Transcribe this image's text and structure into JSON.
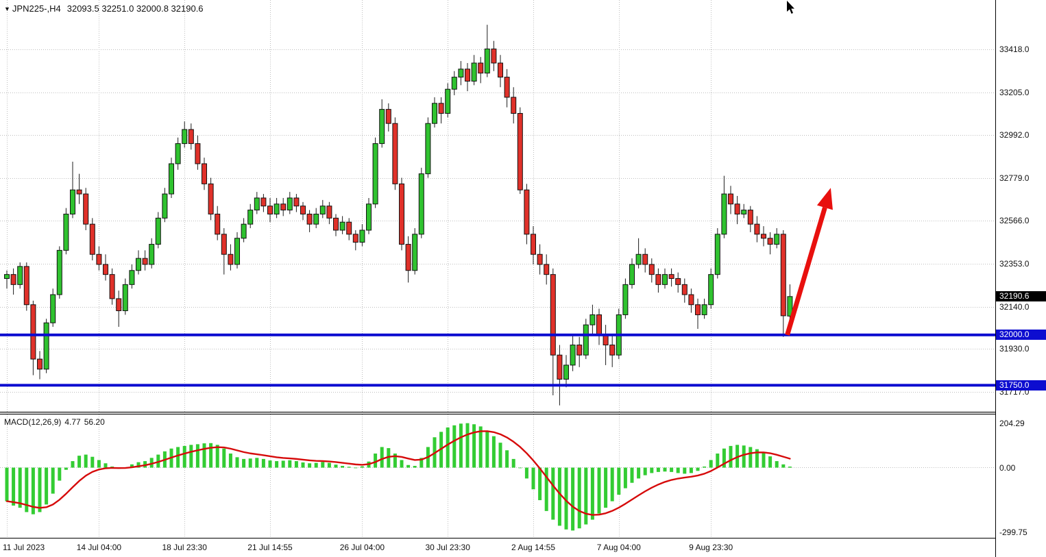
{
  "header": {
    "dropdown_icon": "▼",
    "symbol_timeframe": "JPN225-,H4",
    "ohlc_values": "32093.5 32251.0 32000.8 32190.6"
  },
  "price_axis": {
    "current_price_tag": {
      "text": "32190.6",
      "value": 32190.6,
      "bg": "#000000",
      "fg": "#ffffff"
    },
    "level_tags": [
      {
        "text": "32000.0",
        "value": 32000.0,
        "bg": "#0d0dd0",
        "fg": "#ffffff"
      },
      {
        "text": "31750.0",
        "value": 31750.0,
        "bg": "#0d0dd0",
        "fg": "#ffffff"
      }
    ]
  },
  "macd_panel": {
    "name": "MACD(12,26,9)",
    "value_main": "4.77",
    "value_signal": "56.20"
  },
  "annotations": {
    "support_levels": [
      {
        "price": 32000.0,
        "color": "#0d0dd0",
        "thickness": 4
      },
      {
        "price": 31750.0,
        "color": "#0d0dd0",
        "thickness": 4
      }
    ],
    "trend_arrow": {
      "from_bar": 118.6,
      "from_price": 32000,
      "to_bar": 125.2,
      "to_price": 32730,
      "color": "#e8100e",
      "width": 7
    }
  },
  "chart_data": [
    {
      "type": "candlestick",
      "title": "JPN225-,H4",
      "symbol": "JPN225-",
      "timeframe": "H4",
      "last_ohlc": {
        "open": 32093.5,
        "high": 32251.0,
        "low": 32000.8,
        "close": 32190.6
      },
      "ylim": [
        31620,
        33663
      ],
      "y_ticks": [
        "33418.0",
        "33205.0",
        "32992.0",
        "32779.0",
        "32566.0",
        "32353.0",
        "32140.0",
        "31930.0",
        "31717.0"
      ],
      "x_ticks": [
        {
          "label": "11 Jul 2023",
          "bar": 0
        },
        {
          "label": "14 Jul 04:00",
          "bar": 14
        },
        {
          "label": "18 Jul 23:30",
          "bar": 27
        },
        {
          "label": "21 Jul 14:55",
          "bar": 40
        },
        {
          "label": "26 Jul 04:00",
          "bar": 54
        },
        {
          "label": "30 Jul 23:30",
          "bar": 67
        },
        {
          "label": "2 Aug 14:55",
          "bar": 80
        },
        {
          "label": "7 Aug 04:00",
          "bar": 93
        },
        {
          "label": "9 Aug 23:30",
          "bar": 107
        }
      ],
      "up_color": "#2fc22f",
      "down_color": "#e0312a",
      "candles": [
        [
          32280,
          32320,
          32230,
          32300
        ],
        [
          32300,
          32330,
          32200,
          32250
        ],
        [
          32250,
          32360,
          32230,
          32340
        ],
        [
          32340,
          32360,
          32120,
          32150
        ],
        [
          32150,
          32170,
          31800,
          31880
        ],
        [
          31880,
          31920,
          31780,
          31830
        ],
        [
          31830,
          32080,
          31810,
          32060
        ],
        [
          32060,
          32230,
          32040,
          32200
        ],
        [
          32200,
          32440,
          32180,
          32420
        ],
        [
          32420,
          32630,
          32400,
          32600
        ],
        [
          32600,
          32860,
          32580,
          32720
        ],
        [
          32720,
          32800,
          32650,
          32700
        ],
        [
          32700,
          32730,
          32520,
          32550
        ],
        [
          32550,
          32580,
          32370,
          32400
        ],
        [
          32400,
          32440,
          32320,
          32350
        ],
        [
          32350,
          32400,
          32270,
          32300
        ],
        [
          32300,
          32330,
          32150,
          32180
        ],
        [
          32180,
          32220,
          32040,
          32120
        ],
        [
          32120,
          32280,
          32100,
          32250
        ],
        [
          32250,
          32350,
          32230,
          32320
        ],
        [
          32320,
          32420,
          32300,
          32380
        ],
        [
          32380,
          32420,
          32320,
          32350
        ],
        [
          32350,
          32480,
          32330,
          32450
        ],
        [
          32450,
          32610,
          32430,
          32580
        ],
        [
          32580,
          32730,
          32560,
          32700
        ],
        [
          32700,
          32880,
          32680,
          32850
        ],
        [
          32850,
          32980,
          32820,
          32950
        ],
        [
          32950,
          33060,
          32930,
          33020
        ],
        [
          33020,
          33050,
          32920,
          32950
        ],
        [
          32950,
          32990,
          32820,
          32850
        ],
        [
          32850,
          32880,
          32720,
          32750
        ],
        [
          32750,
          32780,
          32570,
          32600
        ],
        [
          32600,
          32640,
          32470,
          32500
        ],
        [
          32500,
          32530,
          32300,
          32400
        ],
        [
          32400,
          32450,
          32320,
          32350
        ],
        [
          32350,
          32510,
          32330,
          32480
        ],
        [
          32480,
          32580,
          32460,
          32550
        ],
        [
          32550,
          32650,
          32530,
          32620
        ],
        [
          32620,
          32710,
          32600,
          32680
        ],
        [
          32680,
          32700,
          32610,
          32640
        ],
        [
          32640,
          32680,
          32560,
          32600
        ],
        [
          32600,
          32680,
          32580,
          32650
        ],
        [
          32650,
          32680,
          32590,
          32620
        ],
        [
          32620,
          32710,
          32600,
          32680
        ],
        [
          32680,
          32700,
          32610,
          32640
        ],
        [
          32640,
          32660,
          32570,
          32600
        ],
        [
          32600,
          32620,
          32510,
          32550
        ],
        [
          32550,
          32630,
          32530,
          32600
        ],
        [
          32600,
          32670,
          32580,
          32640
        ],
        [
          32640,
          32660,
          32550,
          32580
        ],
        [
          32580,
          32600,
          32490,
          32520
        ],
        [
          32520,
          32590,
          32500,
          32560
        ],
        [
          32560,
          32580,
          32470,
          32500
        ],
        [
          32500,
          32520,
          32420,
          32460
        ],
        [
          32460,
          32550,
          32440,
          32520
        ],
        [
          32520,
          32680,
          32500,
          32650
        ],
        [
          32650,
          32980,
          32630,
          32950
        ],
        [
          32950,
          33170,
          32930,
          33120
        ],
        [
          33120,
          33150,
          33010,
          33050
        ],
        [
          33050,
          33080,
          32720,
          32750
        ],
        [
          32750,
          32780,
          32420,
          32450
        ],
        [
          32450,
          32490,
          32260,
          32320
        ],
        [
          32320,
          32530,
          32300,
          32500
        ],
        [
          32500,
          32830,
          32480,
          32800
        ],
        [
          32800,
          33080,
          32780,
          33050
        ],
        [
          33050,
          33180,
          33030,
          33150
        ],
        [
          33150,
          33180,
          33050,
          33100
        ],
        [
          33100,
          33250,
          33080,
          33220
        ],
        [
          33220,
          33310,
          33190,
          33280
        ],
        [
          33280,
          33360,
          33240,
          33320
        ],
        [
          33320,
          33350,
          33210,
          33260
        ],
        [
          33260,
          33390,
          33240,
          33350
        ],
        [
          33350,
          33380,
          33250,
          33300
        ],
        [
          33300,
          33540,
          33280,
          33420
        ],
        [
          33420,
          33460,
          33310,
          33350
        ],
        [
          33350,
          33390,
          33230,
          33280
        ],
        [
          33280,
          33320,
          33130,
          33180
        ],
        [
          33180,
          33230,
          33050,
          33100
        ],
        [
          33100,
          33130,
          32700,
          32720
        ],
        [
          32720,
          32750,
          32450,
          32500
        ],
        [
          32500,
          32540,
          32350,
          32400
        ],
        [
          32400,
          32450,
          32300,
          32350
        ],
        [
          32350,
          32400,
          32250,
          32300
        ],
        [
          32300,
          32330,
          31700,
          31900
        ],
        [
          31900,
          31950,
          31650,
          31780
        ],
        [
          31780,
          31900,
          31740,
          31850
        ],
        [
          31850,
          32000,
          31820,
          31950
        ],
        [
          31950,
          31990,
          31840,
          31900
        ],
        [
          31900,
          32080,
          31880,
          32050
        ],
        [
          32050,
          32150,
          32000,
          32100
        ],
        [
          32100,
          32130,
          31950,
          32000
        ],
        [
          32000,
          32050,
          31850,
          31950
        ],
        [
          31950,
          32000,
          31840,
          31900
        ],
        [
          31900,
          32130,
          31880,
          32100
        ],
        [
          32100,
          32280,
          32080,
          32250
        ],
        [
          32250,
          32380,
          32230,
          32350
        ],
        [
          32350,
          32480,
          32330,
          32400
        ],
        [
          32400,
          32430,
          32310,
          32350
        ],
        [
          32350,
          32380,
          32260,
          32300
        ],
        [
          32300,
          32330,
          32210,
          32250
        ],
        [
          32250,
          32330,
          32230,
          32300
        ],
        [
          32300,
          32330,
          32240,
          32280
        ],
        [
          32280,
          32310,
          32210,
          32250
        ],
        [
          32250,
          32280,
          32160,
          32200
        ],
        [
          32200,
          32230,
          32110,
          32150
        ],
        [
          32150,
          32180,
          32030,
          32100
        ],
        [
          32100,
          32180,
          32080,
          32150
        ],
        [
          32150,
          32330,
          32130,
          32300
        ],
        [
          32300,
          32530,
          32280,
          32500
        ],
        [
          32500,
          32790,
          32480,
          32700
        ],
        [
          32700,
          32740,
          32600,
          32650
        ],
        [
          32650,
          32690,
          32550,
          32600
        ],
        [
          32600,
          32650,
          32580,
          32620
        ],
        [
          32620,
          32640,
          32510,
          32550
        ],
        [
          32550,
          32590,
          32460,
          32500
        ],
        [
          32500,
          32540,
          32440,
          32480
        ],
        [
          32480,
          32510,
          32400,
          32450
        ],
        [
          32450,
          32530,
          32430,
          32500
        ],
        [
          32500,
          32520,
          31990,
          32095
        ],
        [
          32093.5,
          32251.0,
          32000.8,
          32190.6
        ]
      ]
    },
    {
      "type": "bar",
      "title": "MACD(12,26,9)",
      "current": {
        "macd": 4.77,
        "signal": 56.2
      },
      "ylim": [
        -299.75,
        204.29
      ],
      "y_tick_labels": [
        "204.29",
        "0.00",
        "-299.75"
      ],
      "bar_color": "#33cc33",
      "signal_color": "#d60a0a",
      "signal_period": 9,
      "values": [
        -155,
        -175,
        -185,
        -205,
        -215,
        -205,
        -170,
        -120,
        -60,
        -10,
        30,
        55,
        60,
        50,
        35,
        20,
        5,
        -5,
        0,
        15,
        25,
        30,
        45,
        60,
        75,
        88,
        95,
        100,
        105,
        108,
        112,
        113,
        105,
        88,
        65,
        48,
        40,
        42,
        45,
        40,
        33,
        30,
        32,
        34,
        30,
        24,
        20,
        22,
        26,
        22,
        14,
        8,
        4,
        0,
        6,
        28,
        65,
        95,
        90,
        65,
        35,
        12,
        8,
        45,
        95,
        140,
        165,
        185,
        195,
        203,
        205,
        200,
        190,
        170,
        145,
        115,
        80,
        40,
        0,
        -50,
        -100,
        -150,
        -200,
        -240,
        -268,
        -285,
        -290,
        -280,
        -262,
        -240,
        -212,
        -185,
        -155,
        -125,
        -95,
        -70,
        -50,
        -35,
        -25,
        -20,
        -18,
        -20,
        -25,
        -28,
        -25,
        -15,
        5,
        35,
        65,
        88,
        100,
        105,
        102,
        95,
        85,
        70,
        52,
        30,
        15,
        4.77
      ]
    }
  ]
}
